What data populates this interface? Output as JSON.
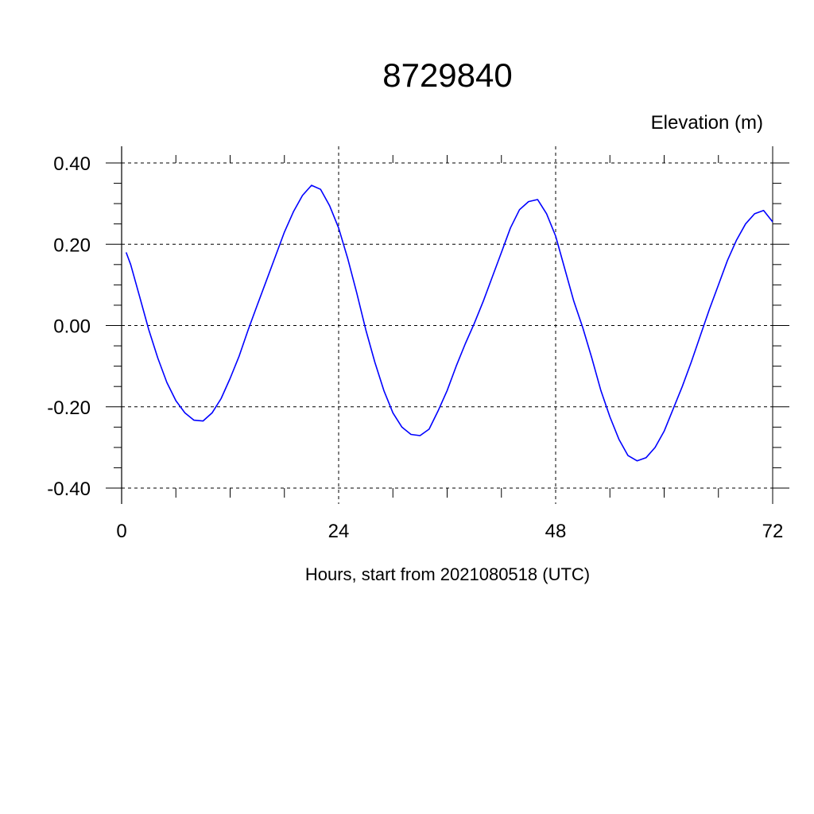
{
  "chart_data": {
    "type": "line",
    "title": "8729840",
    "ylabel": "Elevation (m)",
    "xlabel": "Hours, start from 2021080518 (UTC)",
    "xlim": [
      0,
      72
    ],
    "ylim": [
      -0.4,
      0.4
    ],
    "x_ticks": [
      0,
      24,
      48,
      72
    ],
    "x_tick_labels": [
      "0",
      "24",
      "48",
      "72"
    ],
    "y_ticks": [
      0.4,
      0.2,
      0.0,
      -0.2,
      -0.4
    ],
    "y_tick_labels": [
      "0.40",
      "0.20",
      "0.00",
      "-0.20",
      "-0.40"
    ],
    "grid": true,
    "series": [
      {
        "color": "#0000ff",
        "x": [
          0.5,
          1,
          2,
          3,
          4,
          5,
          6,
          7,
          8,
          9,
          10,
          11,
          12,
          13,
          14,
          15,
          16,
          17,
          18,
          19,
          20,
          21,
          22,
          23,
          24,
          25,
          26,
          27,
          28,
          29,
          30,
          31,
          32,
          33,
          34,
          35,
          36,
          37,
          38,
          39,
          40,
          41,
          42,
          43,
          44,
          45,
          46,
          47,
          48,
          49,
          50,
          51,
          52,
          53,
          54,
          55,
          56,
          57,
          58,
          59,
          60,
          61,
          62,
          63,
          64,
          65,
          66,
          67,
          68,
          69,
          70,
          71,
          72
        ],
        "y": [
          0.18,
          0.15,
          0.07,
          -0.01,
          -0.08,
          -0.14,
          -0.185,
          -0.215,
          -0.233,
          -0.235,
          -0.215,
          -0.18,
          -0.13,
          -0.075,
          -0.01,
          0.05,
          0.11,
          0.17,
          0.23,
          0.28,
          0.32,
          0.345,
          0.335,
          0.295,
          0.24,
          0.165,
          0.08,
          -0.01,
          -0.09,
          -0.16,
          -0.215,
          -0.25,
          -0.268,
          -0.271,
          -0.255,
          -0.21,
          -0.16,
          -0.1,
          -0.045,
          0.005,
          0.06,
          0.12,
          0.18,
          0.24,
          0.285,
          0.305,
          0.31,
          0.275,
          0.22,
          0.14,
          0.06,
          -0.005,
          -0.08,
          -0.16,
          -0.225,
          -0.28,
          -0.32,
          -0.333,
          -0.325,
          -0.3,
          -0.26,
          -0.205,
          -0.15,
          -0.09,
          -0.025,
          0.04,
          0.1,
          0.16,
          0.21,
          0.25,
          0.275,
          0.283,
          0.255
        ]
      }
    ]
  }
}
